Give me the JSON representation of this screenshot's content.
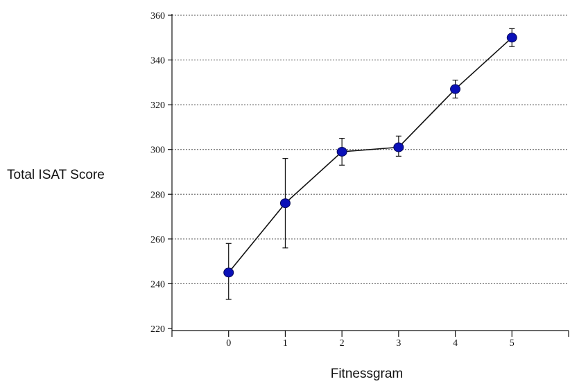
{
  "chart_data": {
    "type": "line",
    "xlabel": "Fitnessgram",
    "ylabel": "Total ISAT Score",
    "x_ticks": [
      "0",
      "1",
      "2",
      "3",
      "4",
      "5"
    ],
    "y_ticks": [
      "220",
      "240",
      "260",
      "280",
      "300",
      "320",
      "340",
      "360"
    ],
    "xlim": [
      -1,
      6
    ],
    "ylim": [
      220,
      360
    ],
    "grid": "horizontal dotted",
    "series": [
      {
        "x": [
          0,
          1,
          2,
          3,
          4,
          5
        ],
        "values": [
          245,
          276,
          299,
          301,
          327,
          350
        ],
        "error_low": [
          233,
          256,
          293,
          297,
          323,
          346
        ],
        "error_high": [
          258,
          296,
          305,
          306,
          331,
          354
        ],
        "color": "#0a10b8"
      }
    ]
  }
}
